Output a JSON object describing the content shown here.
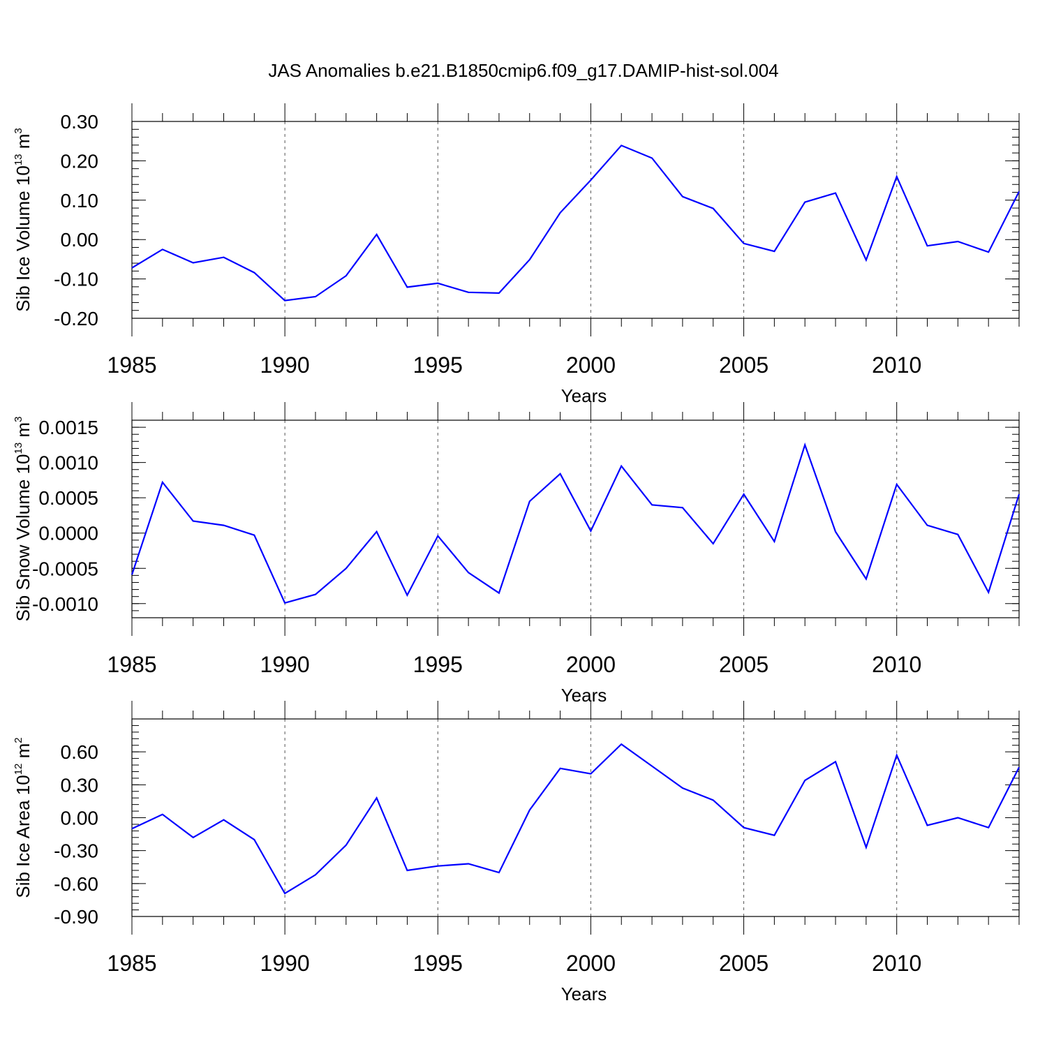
{
  "title": "JAS Anomalies b.e21.B1850cmip6.f09_g17.DAMIP-hist-sol.004",
  "chart_data": [
    {
      "type": "line",
      "title": "",
      "xlabel": "Years",
      "ylabel": {
        "base": "Sib Ice Volume 10",
        "exp": "13",
        "unit": " m",
        "unit_exp": "3"
      },
      "xlim": [
        1985,
        2014
      ],
      "ylim": [
        -0.2,
        0.3
      ],
      "xticks": [
        1985,
        1990,
        1995,
        2000,
        2005,
        2010
      ],
      "xtick_labels": [
        "1985",
        "1990",
        "1995",
        "2000",
        "2005",
        "2010"
      ],
      "yticks": [
        -0.2,
        -0.1,
        0.0,
        0.1,
        0.2,
        0.3
      ],
      "ytick_labels": [
        "-0.20",
        "-0.10",
        "0.00",
        "0.10",
        "0.20",
        "0.30"
      ],
      "yminor_step": 0.02,
      "grid": "vertical-dashed",
      "color": "#0000ff",
      "x": [
        1985,
        1986,
        1987,
        1988,
        1989,
        1990,
        1991,
        1992,
        1993,
        1994,
        1995,
        1996,
        1997,
        1998,
        1999,
        2000,
        2001,
        2002,
        2003,
        2004,
        2005,
        2006,
        2007,
        2008,
        2009,
        2010,
        2011,
        2012,
        2013,
        2014
      ],
      "y": [
        -0.072,
        -0.025,
        -0.059,
        -0.045,
        -0.084,
        -0.155,
        -0.145,
        -0.092,
        0.013,
        -0.121,
        -0.111,
        -0.134,
        -0.136,
        -0.051,
        0.068,
        0.151,
        0.239,
        0.207,
        0.109,
        0.079,
        -0.01,
        -0.03,
        0.095,
        0.118,
        -0.052,
        0.16,
        -0.016,
        -0.005,
        -0.032,
        0.122
      ]
    },
    {
      "type": "line",
      "title": "",
      "xlabel": "Years",
      "ylabel": {
        "base": "Sib Snow Volume 10",
        "exp": "13",
        "unit": " m",
        "unit_exp": "3"
      },
      "xlim": [
        1985,
        2014
      ],
      "ylim": [
        -0.0012,
        0.0016
      ],
      "xticks": [
        1985,
        1990,
        1995,
        2000,
        2005,
        2010
      ],
      "xtick_labels": [
        "1985",
        "1990",
        "1995",
        "2000",
        "2005",
        "2010"
      ],
      "yticks": [
        -0.001,
        -0.0005,
        0.0,
        0.0005,
        0.001,
        0.0015
      ],
      "ytick_labels": [
        "-0.0010",
        "-0.0005",
        "0.0000",
        "0.0005",
        "0.0010",
        "0.0015"
      ],
      "yminor_step": 0.0001,
      "grid": "vertical-dashed",
      "color": "#0000ff",
      "x": [
        1985,
        1986,
        1987,
        1988,
        1989,
        1990,
        1991,
        1992,
        1993,
        1994,
        1995,
        1996,
        1997,
        1998,
        1999,
        2000,
        2001,
        2002,
        2003,
        2004,
        2005,
        2006,
        2007,
        2008,
        2009,
        2010,
        2011,
        2012,
        2013,
        2014
      ],
      "y": [
        -0.00059,
        0.00072,
        0.00017,
        0.00011,
        -3e-05,
        -0.00099,
        -0.00087,
        -0.0005,
        2e-05,
        -0.00088,
        -4e-05,
        -0.00056,
        -0.00085,
        0.00045,
        0.00084,
        3e-05,
        0.00095,
        0.0004,
        0.00036,
        -0.00015,
        0.00055,
        -0.00012,
        0.00125,
        2e-05,
        -0.00065,
        0.00069,
        0.00011,
        -2e-05,
        -0.00084,
        0.00055
      ]
    },
    {
      "type": "line",
      "title": "",
      "xlabel": "Years",
      "ylabel": {
        "base": "Sib Ice Area 10",
        "exp": "12",
        "unit": " m",
        "unit_exp": "2"
      },
      "xlim": [
        1985,
        2014
      ],
      "ylim": [
        -0.9,
        0.9
      ],
      "xticks": [
        1985,
        1990,
        1995,
        2000,
        2005,
        2010
      ],
      "xtick_labels": [
        "1985",
        "1990",
        "1995",
        "2000",
        "2005",
        "2010"
      ],
      "yticks": [
        -0.9,
        -0.6,
        -0.3,
        0.0,
        0.3,
        0.6
      ],
      "ytick_labels": [
        "-0.90",
        "-0.60",
        "-0.30",
        "0.00",
        "0.30",
        "0.60"
      ],
      "yminor_step": 0.06,
      "grid": "vertical-dashed",
      "color": "#0000ff",
      "x": [
        1985,
        1986,
        1987,
        1988,
        1989,
        1990,
        1991,
        1992,
        1993,
        1994,
        1995,
        1996,
        1997,
        1998,
        1999,
        2000,
        2001,
        2002,
        2003,
        2004,
        2005,
        2006,
        2007,
        2008,
        2009,
        2010,
        2011,
        2012,
        2013,
        2014
      ],
      "y": [
        -0.1,
        0.03,
        -0.18,
        -0.02,
        -0.2,
        -0.69,
        -0.52,
        -0.25,
        0.18,
        -0.48,
        -0.44,
        -0.42,
        -0.5,
        0.07,
        0.45,
        0.4,
        0.67,
        0.47,
        0.27,
        0.16,
        -0.09,
        -0.16,
        0.34,
        0.51,
        -0.27,
        0.57,
        -0.07,
        0.0,
        -0.09,
        0.46
      ]
    }
  ]
}
